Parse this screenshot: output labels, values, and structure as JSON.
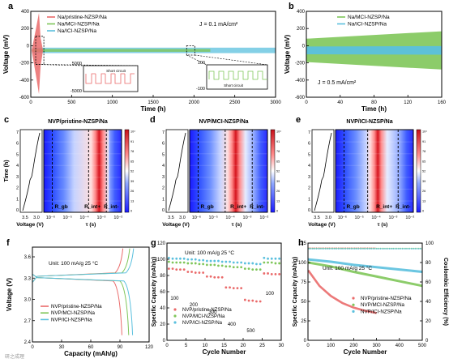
{
  "figure": {
    "panel_letters": [
      "a",
      "b",
      "c",
      "d",
      "e",
      "f",
      "g",
      "h"
    ],
    "watermark": "研之成理"
  },
  "chart_data": [
    {
      "panel": "a",
      "type": "line",
      "xlabel": "Time (h)",
      "ylabel": "Voltage (mV)",
      "xlim": [
        0,
        3000
      ],
      "ylim": [
        -600,
        500
      ],
      "xticks": [
        "0",
        "500",
        "1000",
        "1500",
        "2000",
        "2500",
        "3000"
      ],
      "yticks": [
        "-600",
        "-400",
        "-200",
        "0",
        "200",
        "400"
      ],
      "annotation": "J = 0.1 mA/cm²",
      "series": [
        {
          "name": "Na/pristine-NZSP/Na",
          "color": "#ea6a6a",
          "end_h": 150
        },
        {
          "name": "Na/MCI-NZSP/Na",
          "color": "#7fc65a",
          "end_h": 2200
        },
        {
          "name": "Na/ICI-NZSP/Na",
          "color": "#5bc0de",
          "end_h": 3000
        }
      ],
      "insets": [
        {
          "ylim_top": "5000",
          "ylim_bottom": "-5000",
          "label": "Short circuit"
        },
        {
          "ylim_top": "100",
          "ylim_bottom": "-100",
          "label": "Short circuit"
        }
      ]
    },
    {
      "panel": "b",
      "type": "line",
      "xlabel": "Time (h)",
      "ylabel": "Voltage (mV)",
      "xlim": [
        0,
        160
      ],
      "ylim": [
        -600,
        500
      ],
      "xticks": [
        "0",
        "40",
        "80",
        "120",
        "160"
      ],
      "yticks": [
        "-600",
        "-400",
        "-200",
        "0",
        "200",
        "400"
      ],
      "annotation": "J = 0.5 mA/cm²",
      "series": [
        {
          "name": "Na/MCI-NZSP/Na",
          "color": "#7fc65a",
          "amp_start": 150,
          "amp_end": 245
        },
        {
          "name": "Na/ICI-NZSP/Na",
          "color": "#5bc0de",
          "amp_start": 50,
          "amp_end": 55
        }
      ]
    },
    {
      "panel": "c",
      "type": "heatmap",
      "title": "NVP/pristine-NZSP/Na",
      "ylabel": "Time (h)",
      "voltage_xlabel": "Voltage (V)",
      "voltage_ticks": [
        "3.5",
        "3.0"
      ],
      "tau_xlabel": "τ (s)",
      "tau_ticks": [
        "10⁻⁶",
        "10⁻⁵",
        "10⁻⁴",
        "10⁻³",
        "10⁻²"
      ],
      "time_ticks": [
        "0",
        "1",
        "2",
        "3",
        "4",
        "5",
        "6",
        "7"
      ],
      "region_labels": [
        "R_gb",
        "R_int+",
        "R_int-"
      ],
      "colorbar_ticks": [
        "10⁴",
        "91",
        "78",
        "65",
        "52",
        "39",
        "26",
        "13",
        "0"
      ],
      "peak_log_tau": [
        -3.2,
        -3.05
      ]
    },
    {
      "panel": "d",
      "type": "heatmap",
      "title": "NVP/MCI-NZSP/Na",
      "ylabel": "",
      "voltage_xlabel": "Voltage (V)",
      "voltage_ticks": [
        "3.5",
        "3.0"
      ],
      "tau_xlabel": "τ (s)",
      "tau_ticks": [
        "10⁻⁶",
        "10⁻⁵",
        "10⁻⁴",
        "10⁻³",
        "10⁻²"
      ],
      "time_ticks": [
        "0",
        "1",
        "2",
        "3",
        "4",
        "5",
        "6",
        "7"
      ],
      "region_labels": [
        "R_gb",
        "R_int+",
        "R_int-"
      ],
      "colorbar_ticks": [
        "10⁴",
        "91",
        "78",
        "65",
        "52",
        "39",
        "26",
        "13",
        "0"
      ],
      "peak_log_tau": [
        -3.75,
        -3.6
      ]
    },
    {
      "panel": "e",
      "type": "heatmap",
      "title": "NVP/ICI-NZSP/Na",
      "ylabel": "",
      "voltage_xlabel": "Voltage (V)",
      "voltage_ticks": [
        "3.5",
        "3.0"
      ],
      "tau_xlabel": "τ (s)",
      "tau_ticks": [
        "10⁻⁶",
        "10⁻⁵",
        "10⁻⁴",
        "10⁻³",
        "10⁻²"
      ],
      "time_ticks": [
        "0",
        "1",
        "2",
        "3",
        "4",
        "5",
        "6",
        "7"
      ],
      "region_labels": [
        "R_gb",
        "R_int+",
        "R_int-"
      ],
      "colorbar_ticks": [
        "10⁴",
        "91",
        "78",
        "65",
        "52",
        "39",
        "26",
        "13",
        "0"
      ],
      "peak_log_tau": [
        -3.95,
        -3.85
      ]
    },
    {
      "panel": "f",
      "type": "line",
      "xlabel": "Capacity (mAh/g)",
      "ylabel": "Voltage (V)",
      "xlim": [
        0,
        120
      ],
      "ylim": [
        2.4,
        3.8
      ],
      "xticks": [
        "0",
        "30",
        "60",
        "90",
        "120"
      ],
      "yticks": [
        "2.4",
        "2.7",
        "3.0",
        "3.3",
        "3.6"
      ],
      "annotation": "Unit: 100 mA/g 25 °C",
      "series": [
        {
          "name": "NVP/pristine-NZSP/Na",
          "color": "#ea6a6a",
          "capacity": 93
        },
        {
          "name": "NVP/MCI-NZSP/Na",
          "color": "#7fc65a",
          "capacity": 100
        },
        {
          "name": "NVP/ICI-NZSP/Na",
          "color": "#5bc0de",
          "capacity": 104
        }
      ]
    },
    {
      "panel": "g",
      "type": "scatter",
      "xlabel": "Cycle Number",
      "ylabel": "Specific Capacity (mAh/g)",
      "xlim": [
        0,
        30
      ],
      "ylim": [
        0,
        125
      ],
      "xticks": [
        "0",
        "5",
        "10",
        "15",
        "20",
        "25",
        "30"
      ],
      "yticks": [
        "0",
        "20",
        "40",
        "60",
        "80",
        "100",
        "120"
      ],
      "annotation": "Unit: 100 mA/g 25 °C",
      "rate_labels": [
        "100",
        "200",
        "300",
        "400",
        "500",
        "100"
      ],
      "series": [
        {
          "name": "NVP/pristine-NZSP/Na",
          "color": "#ea6a6a",
          "values": [
            92,
            92,
            91,
            91,
            91,
            88,
            88,
            87,
            87,
            87,
            82,
            82,
            81,
            81,
            81,
            68,
            68,
            67,
            67,
            67,
            52,
            51,
            51,
            50,
            50,
            86,
            86,
            85,
            85,
            85
          ]
        },
        {
          "name": "NVP/MCI-NZSP/Na",
          "color": "#7fc65a",
          "values": [
            101,
            100,
            100,
            100,
            100,
            99,
            99,
            99,
            98,
            98,
            97,
            97,
            97,
            96,
            96,
            95,
            95,
            94,
            94,
            94,
            92,
            92,
            91,
            91,
            91,
            100,
            100,
            100,
            99,
            99
          ]
        },
        {
          "name": "NVP/ICI-NZSP/Na",
          "color": "#5bc0de",
          "values": [
            106,
            105,
            105,
            105,
            105,
            104,
            104,
            104,
            103,
            103,
            102,
            102,
            102,
            102,
            101,
            101,
            101,
            100,
            100,
            100,
            99,
            99,
            99,
            98,
            98,
            106,
            105,
            105,
            105,
            105
          ]
        }
      ]
    },
    {
      "panel": "h",
      "type": "line",
      "xlabel": "Cycle Number",
      "ylabel": "Specific Capacity (mAh/g)",
      "y2label": "Coulombic Efficiency (%)",
      "xlim": [
        0,
        500
      ],
      "ylim": [
        0,
        125
      ],
      "y2lim": [
        0,
        105
      ],
      "xticks": [
        "0",
        "100",
        "200",
        "300",
        "400",
        "500"
      ],
      "yticks": [
        "0",
        "25",
        "50",
        "75",
        "100",
        "125"
      ],
      "y2ticks": [
        "0",
        "20",
        "40",
        "60",
        "80",
        "100"
      ],
      "annotation": "Unit: 100 mA/g 25 °C",
      "series": [
        {
          "name": "NVP/pristine-NZSP/Na",
          "color": "#ea6a6a",
          "points": [
            [
              1,
              90
            ],
            [
              50,
              70
            ],
            [
              100,
              57
            ],
            [
              150,
              48
            ],
            [
              200,
              42
            ],
            [
              250,
              38
            ],
            [
              300,
              35
            ]
          ]
        },
        {
          "name": "NVP/MCI-NZSP/Na",
          "color": "#7fc65a",
          "points": [
            [
              1,
              100
            ],
            [
              100,
              95
            ],
            [
              200,
              88
            ],
            [
              300,
              82
            ],
            [
              400,
              76
            ],
            [
              500,
              70
            ]
          ]
        },
        {
          "name": "NVP/ICI-NZSP/Na",
          "color": "#5bc0de",
          "points": [
            [
              1,
              104
            ],
            [
              100,
              101
            ],
            [
              200,
              97
            ],
            [
              300,
              94
            ],
            [
              400,
              91
            ],
            [
              500,
              88
            ]
          ]
        }
      ],
      "coulombic_efficiency": 99.5
    }
  ]
}
